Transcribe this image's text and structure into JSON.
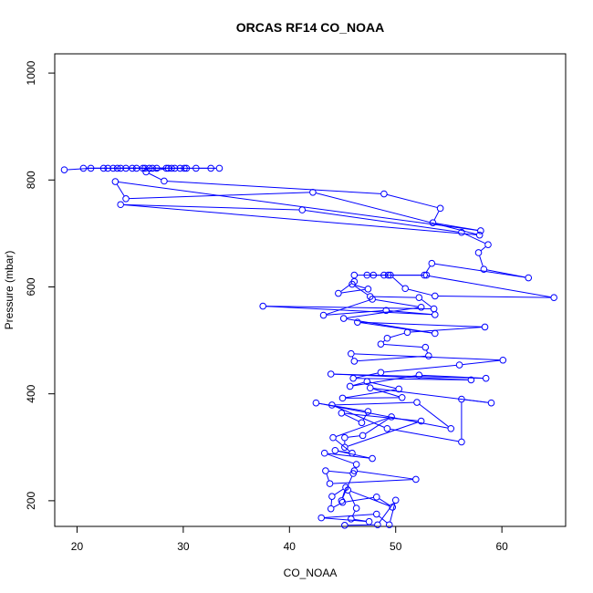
{
  "chart_data": {
    "type": "line",
    "title": "ORCAS RF14 CO_NOAA",
    "xlabel": "CO_NOAA",
    "ylabel": "Pressure (mbar)",
    "xlim": [
      17.9,
      66.0
    ],
    "ylim": [
      1036,
      152
    ],
    "y_reversed": true,
    "x_ticks": [
      20,
      30,
      40,
      50,
      60
    ],
    "y_ticks": [
      200,
      400,
      600,
      800,
      1000
    ],
    "grid": false,
    "legend": "none",
    "color": "#0000ff",
    "marker": "open-circle",
    "series": [
      {
        "points": [
          [
            18.8,
            819
          ],
          [
            21.3,
            822
          ],
          [
            22.5,
            822
          ],
          [
            24.1,
            822
          ],
          [
            26.2,
            822
          ],
          [
            28.4,
            822
          ],
          [
            30.1,
            822
          ],
          [
            32.6,
            822
          ],
          [
            33.4,
            822
          ],
          [
            31.2,
            822
          ],
          [
            29.7,
            822
          ],
          [
            27.5,
            822
          ],
          [
            25.6,
            822
          ],
          [
            23.4,
            822
          ],
          [
            20.6,
            822
          ],
          [
            22.9,
            822
          ],
          [
            24.6,
            822
          ],
          [
            26.8,
            822
          ],
          [
            28.9,
            822
          ],
          [
            30.3,
            822
          ],
          [
            29.2,
            822
          ],
          [
            27.1,
            822
          ],
          [
            25.2,
            822
          ],
          [
            23.8,
            822
          ],
          [
            26.4,
            822
          ],
          [
            28.6,
            822
          ],
          [
            26.5,
            815
          ],
          [
            28.2,
            798
          ],
          [
            48.9,
            774
          ],
          [
            54.2,
            747
          ],
          [
            53.5,
            720
          ],
          [
            58.0,
            705
          ],
          [
            23.6,
            797
          ],
          [
            24.6,
            765
          ],
          [
            42.2,
            777
          ],
          [
            57.9,
            697
          ],
          [
            24.1,
            754
          ],
          [
            41.2,
            744
          ],
          [
            56.2,
            702
          ],
          [
            58.7,
            679
          ],
          [
            57.8,
            664
          ],
          [
            58.3,
            633
          ],
          [
            62.5,
            617
          ],
          [
            53.4,
            644
          ],
          [
            52.7,
            622
          ],
          [
            64.9,
            580
          ],
          [
            53.7,
            583
          ],
          [
            50.9,
            597
          ],
          [
            49.5,
            622
          ],
          [
            48.9,
            622
          ],
          [
            47.3,
            622
          ],
          [
            52.9,
            622
          ],
          [
            49.3,
            622
          ],
          [
            47.9,
            622
          ],
          [
            46.1,
            622
          ],
          [
            46.1,
            610
          ],
          [
            44.6,
            588
          ],
          [
            47.4,
            596
          ],
          [
            45.9,
            605
          ],
          [
            47.6,
            582
          ],
          [
            52.2,
            580
          ],
          [
            53.6,
            559
          ],
          [
            37.5,
            564
          ],
          [
            53.7,
            548
          ],
          [
            49.1,
            556
          ],
          [
            43.2,
            547
          ],
          [
            47.8,
            577
          ],
          [
            52.4,
            562
          ],
          [
            45.1,
            541
          ],
          [
            53.7,
            513
          ],
          [
            46.4,
            534
          ],
          [
            58.4,
            525
          ],
          [
            51.1,
            515
          ],
          [
            49.2,
            504
          ],
          [
            48.6,
            493
          ],
          [
            52.8,
            487
          ],
          [
            53.1,
            471
          ],
          [
            46.1,
            461
          ],
          [
            45.8,
            475
          ],
          [
            60.1,
            463
          ],
          [
            56.0,
            454
          ],
          [
            48.6,
            440
          ],
          [
            46.0,
            429
          ],
          [
            57.1,
            426
          ],
          [
            43.9,
            437
          ],
          [
            58.5,
            429
          ],
          [
            52.2,
            435
          ],
          [
            45.7,
            414
          ],
          [
            47.3,
            423
          ],
          [
            50.3,
            409
          ],
          [
            45.0,
            392
          ],
          [
            50.6,
            393
          ],
          [
            47.6,
            411
          ],
          [
            59.0,
            383
          ],
          [
            56.2,
            390
          ],
          [
            56.2,
            310
          ],
          [
            49.2,
            335
          ],
          [
            44.0,
            379
          ],
          [
            52.0,
            384
          ],
          [
            55.2,
            335
          ],
          [
            42.5,
            383
          ],
          [
            47.4,
            367
          ],
          [
            46.8,
            346
          ],
          [
            44.9,
            364
          ],
          [
            52.4,
            349
          ],
          [
            45.2,
            300
          ],
          [
            45.2,
            318
          ],
          [
            46.9,
            322
          ],
          [
            49.6,
            357
          ],
          [
            44.1,
            318
          ],
          [
            45.9,
            289
          ],
          [
            44.3,
            294
          ],
          [
            47.8,
            279
          ],
          [
            43.3,
            289
          ],
          [
            46.3,
            268
          ],
          [
            46.1,
            256
          ],
          [
            51.9,
            240
          ],
          [
            43.8,
            232
          ],
          [
            43.4,
            256
          ],
          [
            46.0,
            251
          ],
          [
            44.9,
            200
          ],
          [
            45.3,
            225
          ],
          [
            44.0,
            208
          ],
          [
            43.9,
            185
          ],
          [
            45.0,
            197
          ],
          [
            48.2,
            207
          ],
          [
            49.7,
            188
          ],
          [
            45.5,
            220
          ],
          [
            46.3,
            186
          ],
          [
            45.8,
            166
          ],
          [
            47.5,
            161
          ],
          [
            43.0,
            168
          ],
          [
            48.2,
            175
          ],
          [
            49.4,
            155
          ],
          [
            50.0,
            201
          ],
          [
            48.3,
            155
          ],
          [
            45.2,
            154
          ]
        ]
      }
    ]
  }
}
